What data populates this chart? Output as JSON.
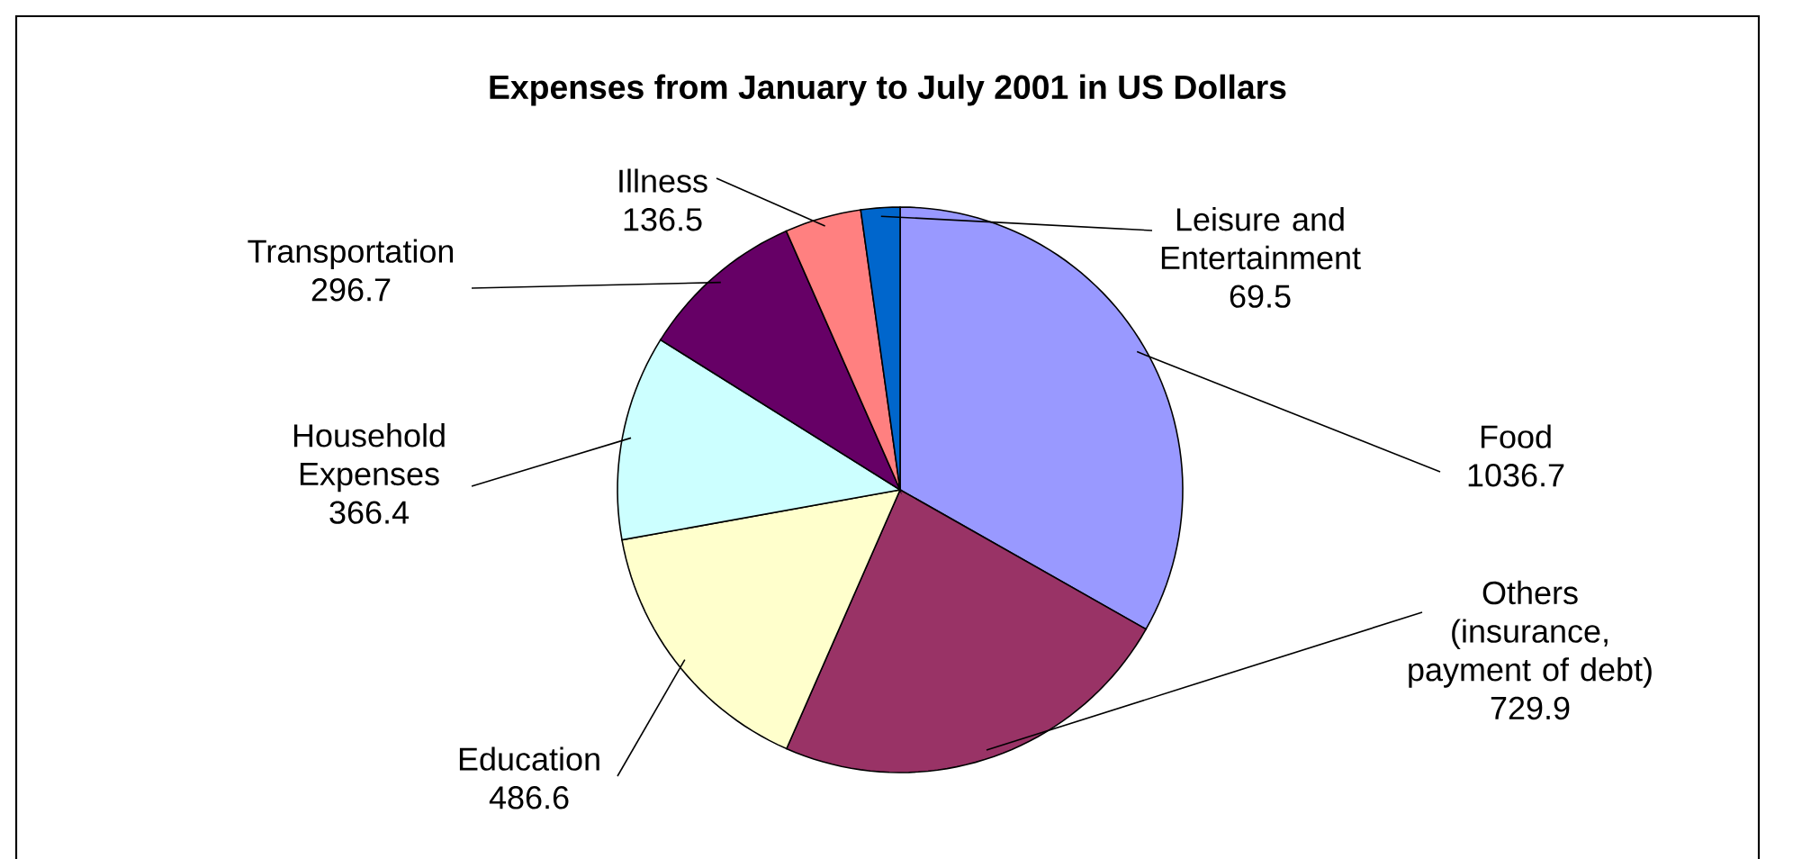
{
  "chart_data": {
    "type": "pie",
    "title": "Expenses from January to July 2001 in US Dollars",
    "categories": [
      "Food",
      "Others (insurance, payment of debt)",
      "Education",
      "Household Expenses",
      "Transportation",
      "Illness",
      "Leisure and Entertainment"
    ],
    "values": [
      1036.7,
      729.9,
      486.6,
      366.4,
      296.7,
      136.5,
      69.5
    ],
    "colors": [
      "#9999ff",
      "#993366",
      "#ffffcc",
      "#ccffff",
      "#660066",
      "#ff8080",
      "#0066cc"
    ],
    "data_labels": true
  }
}
